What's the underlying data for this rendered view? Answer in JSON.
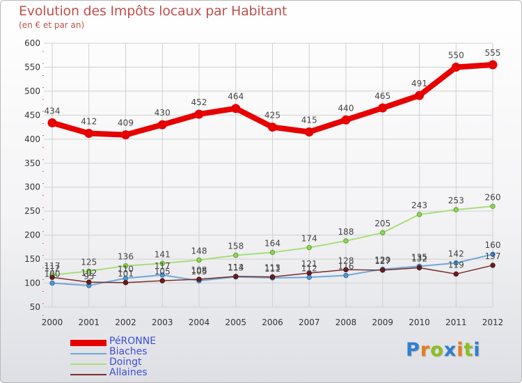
{
  "chart_data": {
    "type": "line",
    "title": "Evolution des Impôts locaux par Habitant",
    "subtitle": "(en € et par an)",
    "xlabel": "",
    "ylabel": "",
    "ylim": [
      50,
      600
    ],
    "yticks": [
      50,
      100,
      150,
      200,
      250,
      300,
      350,
      400,
      450,
      500,
      550,
      600
    ],
    "grid": true,
    "legend_position": "bottom-left",
    "categories": [
      "2000",
      "2001",
      "2002",
      "2003",
      "2004",
      "2005",
      "2006",
      "2007",
      "2008",
      "2009",
      "2010",
      "2011",
      "2012"
    ],
    "series": [
      {
        "name": "PéRONNE",
        "key": "peronne",
        "color": "#e60000",
        "values": [
          434,
          412,
          409,
          430,
          452,
          464,
          425,
          415,
          440,
          465,
          491,
          550,
          555
        ],
        "labels": [
          "434",
          "412",
          "409",
          "430",
          "452",
          "464",
          "425",
          "415",
          "440",
          "465",
          "491",
          "550",
          "555"
        ]
      },
      {
        "name": "Biaches",
        "key": "biaches",
        "color": "#6fa8d6",
        "values": [
          100,
          95,
          110,
          117,
          105,
          113,
          111,
          112,
          116,
          129,
          135,
          142,
          160
        ],
        "labels": [
          "100",
          "95",
          "110",
          "117",
          "105",
          "113",
          "111",
          "112",
          "116",
          "129",
          "135",
          "142",
          "160"
        ]
      },
      {
        "name": "Doingt",
        "key": "doingt",
        "color": "#a6de7a",
        "values": [
          117,
          125,
          136,
          141,
          148,
          158,
          164,
          174,
          188,
          205,
          243,
          253,
          260
        ],
        "labels": [
          "117",
          "125",
          "136",
          "141",
          "148",
          "158",
          "164",
          "174",
          "188",
          "205",
          "243",
          "253",
          "260"
        ]
      },
      {
        "name": "Allaines",
        "key": "allaines",
        "color": "#7a2d2d",
        "values": [
          112,
          102,
          101,
          105,
          108,
          114,
          113,
          121,
          128,
          127,
          132,
          119,
          137
        ],
        "labels": [
          "112",
          "102",
          "101",
          "105",
          "108",
          "114",
          "113",
          "121",
          "128",
          "127",
          "132",
          "119",
          "137"
        ]
      }
    ]
  },
  "logo": {
    "letters": [
      "P",
      "r",
      "o",
      "x",
      "i",
      "t",
      "i"
    ],
    "colors": [
      "#2f7fd1",
      "#e77d1c",
      "#8cbf1f",
      "#2f7fd1",
      "#e77d1c",
      "#8cbf1f",
      "#2f7fd1"
    ]
  }
}
